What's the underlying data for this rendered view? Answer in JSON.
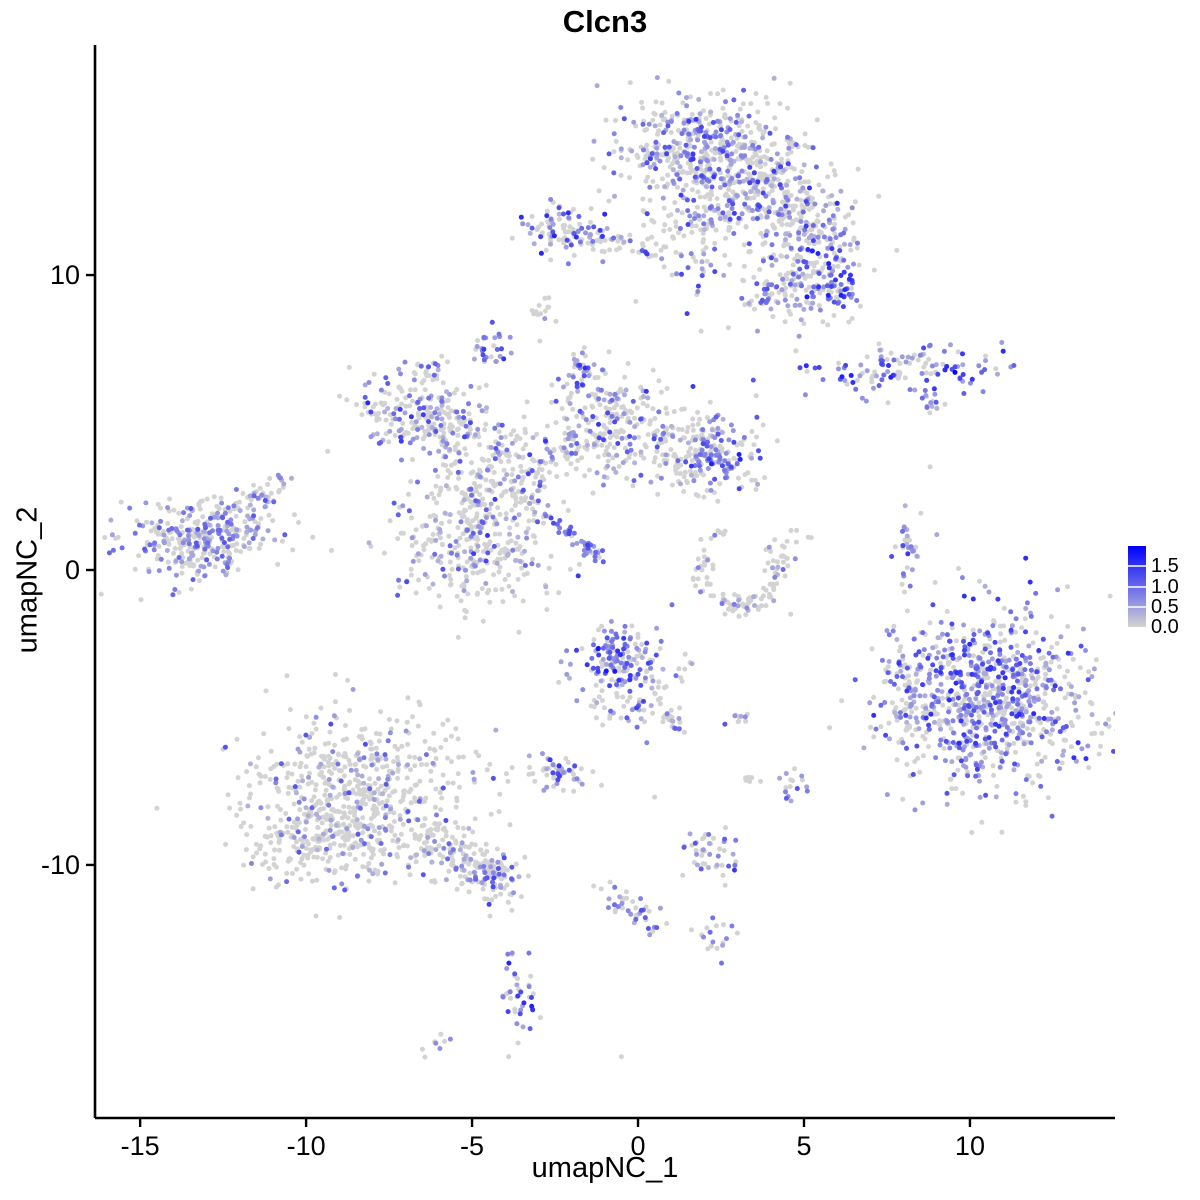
{
  "title": "Clcn3",
  "axes": {
    "xlabel": "umapNC_1",
    "ylabel": "umapNC_2",
    "x_ticks": [
      -15,
      -10,
      -5,
      0,
      5,
      10
    ],
    "y_ticks": [
      10,
      0,
      -10
    ],
    "xlim": [
      -16.36,
      14.37
    ],
    "ylim": [
      -18.58,
      17.8
    ],
    "axis_color": "#000000"
  },
  "legend": {
    "ticks": [
      "1.5",
      "1.0",
      "0.5",
      "0.0"
    ],
    "values": [
      1.5,
      1.0,
      0.5,
      0.0
    ],
    "max": 2.0,
    "color_low": "#D3D3D3",
    "color_high": "#0000FF"
  },
  "chart_data": {
    "type": "scatter",
    "title": "Clcn3",
    "xlabel": "umapNC_1",
    "ylabel": "umapNC_2",
    "grid": false,
    "legend_position": "right",
    "point_radius": 2.5,
    "seed": 20,
    "color_low": "#D3D3D3",
    "color_high": "#0000FF",
    "value_max": 2.0,
    "clusters": [
      {
        "name": "top-main",
        "shape": "gauss",
        "cx": 1.9,
        "cy": 14.2,
        "sx": 1.25,
        "sy": 1.0,
        "n": 480,
        "f": 0.38,
        "lo": 0.3,
        "hi": 1.5
      },
      {
        "name": "top-mid",
        "shape": "gauss",
        "cx": 3.6,
        "cy": 12.8,
        "sx": 1.0,
        "sy": 0.9,
        "n": 260,
        "f": 0.38,
        "lo": 0.3,
        "hi": 1.5
      },
      {
        "name": "top-arm",
        "shape": "gauss",
        "cx": 5.2,
        "cy": 11.4,
        "sx": 0.8,
        "sy": 0.75,
        "n": 150,
        "f": 0.42,
        "lo": 0.3,
        "hi": 1.6
      },
      {
        "name": "top-right-blob",
        "shape": "gauss",
        "cx": 5.65,
        "cy": 9.7,
        "sx": 0.6,
        "sy": 0.7,
        "n": 130,
        "f": 0.6,
        "lo": 0.4,
        "hi": 1.8
      },
      {
        "name": "top-lower-tail",
        "shape": "gauss",
        "cx": 4.0,
        "cy": 9.4,
        "sx": 0.5,
        "sy": 0.55,
        "n": 60,
        "f": 0.4,
        "lo": 0.3,
        "hi": 1.4
      },
      {
        "name": "top-neck",
        "shape": "gauss",
        "cx": 1.5,
        "cy": 11.2,
        "sx": 0.8,
        "sy": 0.95,
        "n": 80,
        "f": 0.33,
        "lo": 0.3,
        "hi": 1.4
      },
      {
        "name": "b-cluster",
        "shape": "gauss",
        "cx": -2.3,
        "cy": 11.5,
        "sx": 0.75,
        "sy": 0.5,
        "n": 100,
        "f": 0.38,
        "lo": 0.3,
        "hi": 1.7
      },
      {
        "name": "b-chain",
        "shape": "line",
        "x1": -1.2,
        "y1": 11.4,
        "x2": 0.3,
        "y2": 10.8,
        "j": 0.18,
        "n": 30,
        "f": 0.4,
        "lo": 0.3,
        "hi": 1.5
      },
      {
        "name": "c-fish",
        "shape": "gauss",
        "cx": 8.0,
        "cy": 6.8,
        "sx": 1.5,
        "sy": 0.45,
        "n": 120,
        "f": 0.7,
        "lo": 0.4,
        "hi": 1.7
      },
      {
        "name": "c-dark",
        "shape": "points",
        "pts": [
          [
            9.55,
            6.7,
            1.95
          ],
          [
            9.3,
            6.9,
            1.6
          ],
          [
            9.7,
            6.5,
            1.3
          ]
        ]
      },
      {
        "name": "c-tail",
        "shape": "line",
        "x1": 8.5,
        "y1": 6.1,
        "x2": 8.95,
        "y2": 5.3,
        "j": 0.12,
        "n": 12,
        "f": 0.5,
        "lo": 0.3,
        "hi": 1.2
      },
      {
        "name": "d-small",
        "shape": "gauss",
        "cx": -4.55,
        "cy": 7.4,
        "sx": 0.28,
        "sy": 0.42,
        "n": 28,
        "f": 0.85,
        "lo": 0.4,
        "hi": 1.6
      },
      {
        "name": "e-main",
        "shape": "gauss",
        "cx": -6.9,
        "cy": 5.5,
        "sx": 0.85,
        "sy": 0.7,
        "n": 150,
        "f": 0.42,
        "lo": 0.3,
        "hi": 1.6
      },
      {
        "name": "e-right",
        "shape": "gauss",
        "cx": -5.55,
        "cy": 4.9,
        "sx": 0.55,
        "sy": 0.5,
        "n": 70,
        "f": 0.35,
        "lo": 0.3,
        "hi": 1.4
      },
      {
        "name": "e-top-chain",
        "shape": "line",
        "x1": -6.4,
        "y1": 6.5,
        "x2": -6.1,
        "y2": 7.4,
        "j": 0.15,
        "n": 12,
        "f": 0.3,
        "lo": 0.3,
        "hi": 1.2
      },
      {
        "name": "f1-fan",
        "shape": "gauss",
        "cx": -0.9,
        "cy": 5.0,
        "sx": 0.95,
        "sy": 0.95,
        "n": 230,
        "f": 0.35,
        "lo": 0.3,
        "hi": 1.5
      },
      {
        "name": "f1-tip",
        "shape": "gauss",
        "cx": -1.7,
        "cy": 6.8,
        "sx": 0.3,
        "sy": 0.4,
        "n": 30,
        "f": 0.55,
        "lo": 0.4,
        "hi": 1.6
      },
      {
        "name": "f2-lobe",
        "shape": "gauss",
        "cx": 1.8,
        "cy": 4.0,
        "sx": 1.0,
        "sy": 0.68,
        "n": 210,
        "f": 0.32,
        "lo": 0.3,
        "hi": 1.5
      },
      {
        "name": "f2-dense",
        "shape": "gauss",
        "cx": 2.55,
        "cy": 3.75,
        "sx": 0.35,
        "sy": 0.35,
        "n": 40,
        "f": 0.85,
        "lo": 0.5,
        "hi": 1.7
      },
      {
        "name": "f3-branch",
        "shape": "gauss",
        "cx": -4.4,
        "cy": 3.6,
        "sx": 0.85,
        "sy": 0.85,
        "n": 160,
        "f": 0.3,
        "lo": 0.3,
        "hi": 1.4
      },
      {
        "name": "f3-arm",
        "shape": "line",
        "x1": -3.5,
        "y1": 3.1,
        "x2": -1.9,
        "y2": 4.3,
        "j": 0.3,
        "n": 45,
        "f": 0.35,
        "lo": 0.3,
        "hi": 1.4
      },
      {
        "name": "f4-round",
        "shape": "gauss",
        "cx": -5.0,
        "cy": 0.8,
        "sx": 1.2,
        "sy": 1.1,
        "n": 300,
        "f": 0.28,
        "lo": 0.3,
        "hi": 1.5
      },
      {
        "name": "f4-neck",
        "shape": "line",
        "x1": -4.9,
        "y1": 2.4,
        "x2": -5.0,
        "y2": 1.5,
        "j": 0.25,
        "n": 30,
        "f": 0.3,
        "lo": 0.3,
        "hi": 1.2
      },
      {
        "name": "f5-streak",
        "shape": "line",
        "x1": -2.7,
        "y1": 1.8,
        "x2": -1.15,
        "y2": 0.35,
        "j": 0.12,
        "n": 40,
        "f": 0.85,
        "lo": 0.5,
        "hi": 1.4
      },
      {
        "name": "f6-arm",
        "shape": "line",
        "x1": -3.9,
        "y1": 2.6,
        "x2": -2.8,
        "y2": 1.9,
        "j": 0.2,
        "n": 25,
        "f": 0.4,
        "lo": 0.3,
        "hi": 1.3
      },
      {
        "name": "g-crescent",
        "shape": "arc",
        "cx": 3.1,
        "cy": -0.05,
        "r": 1.15,
        "a1": 150,
        "a2": 385,
        "j": 0.15,
        "n": 90,
        "f": 0.12,
        "lo": 0.3,
        "hi": 1.0
      },
      {
        "name": "g-top",
        "shape": "gauss",
        "cx": 4.3,
        "cy": 0.75,
        "sx": 0.35,
        "sy": 0.3,
        "n": 18,
        "f": 0.15,
        "lo": 0.3,
        "hi": 1.0
      },
      {
        "name": "g-dots",
        "shape": "gauss",
        "cx": 2.3,
        "cy": 1.3,
        "sx": 0.25,
        "sy": 0.2,
        "n": 8,
        "f": 0.2,
        "lo": 0.3,
        "hi": 1.0
      },
      {
        "name": "h-main",
        "shape": "gauss",
        "cx": -13.6,
        "cy": 0.9,
        "sx": 0.95,
        "sy": 0.7,
        "n": 210,
        "f": 0.5,
        "lo": 0.35,
        "hi": 1.2
      },
      {
        "name": "h-right",
        "shape": "gauss",
        "cx": -12.4,
        "cy": 1.4,
        "sx": 0.85,
        "sy": 0.6,
        "n": 130,
        "f": 0.48,
        "lo": 0.35,
        "hi": 1.2
      },
      {
        "name": "h-tail",
        "shape": "line",
        "x1": -11.8,
        "y1": 2.2,
        "x2": -10.7,
        "y2": 3.0,
        "j": 0.22,
        "n": 35,
        "f": 0.45,
        "lo": 0.3,
        "hi": 1.3
      },
      {
        "name": "i-strip",
        "shape": "gauss",
        "cx": 8.1,
        "cy": 0.55,
        "sx": 0.18,
        "sy": 0.6,
        "n": 30,
        "f": 0.5,
        "lo": 0.3,
        "hi": 1.5
      },
      {
        "name": "j-main",
        "shape": "gauss",
        "cx": 10.6,
        "cy": -4.4,
        "sx": 1.55,
        "sy": 1.55,
        "n": 850,
        "f": 0.55,
        "lo": 0.35,
        "hi": 1.6
      },
      {
        "name": "j-left",
        "shape": "gauss",
        "cx": 8.2,
        "cy": -4.1,
        "sx": 0.35,
        "sy": 1.0,
        "n": 70,
        "f": 0.45,
        "lo": 0.3,
        "hi": 1.4
      },
      {
        "name": "k-main",
        "shape": "gauss",
        "cx": -0.4,
        "cy": -3.55,
        "sx": 0.75,
        "sy": 0.85,
        "n": 170,
        "f": 0.45,
        "lo": 0.3,
        "hi": 1.5
      },
      {
        "name": "k-dark",
        "shape": "gauss",
        "cx": -0.78,
        "cy": -2.75,
        "sx": 0.32,
        "sy": 0.32,
        "n": 45,
        "f": 0.9,
        "lo": 0.6,
        "hi": 1.8
      },
      {
        "name": "k-tail",
        "shape": "line",
        "x1": 0.5,
        "y1": -4.7,
        "x2": 1.3,
        "y2": -5.3,
        "j": 0.18,
        "n": 20,
        "f": 0.4,
        "lo": 0.3,
        "hi": 1.3
      },
      {
        "name": "k-pair",
        "shape": "gauss",
        "cx": 2.95,
        "cy": -5.1,
        "sx": 0.18,
        "sy": 0.15,
        "n": 10,
        "f": 0.65,
        "lo": 0.4,
        "hi": 1.4
      },
      {
        "name": "l-small",
        "shape": "gauss",
        "cx": -2.4,
        "cy": -6.8,
        "sx": 0.45,
        "sy": 0.35,
        "n": 50,
        "f": 0.5,
        "lo": 0.35,
        "hi": 1.5
      },
      {
        "name": "m-purple",
        "shape": "gauss",
        "cx": 4.75,
        "cy": -7.3,
        "sx": 0.22,
        "sy": 0.32,
        "n": 16,
        "f": 0.6,
        "lo": 0.4,
        "hi": 1.5
      },
      {
        "name": "m-grey",
        "shape": "gauss",
        "cx": 3.3,
        "cy": -7.1,
        "sx": 0.18,
        "sy": 0.15,
        "n": 8,
        "f": 0.12,
        "lo": 0.3,
        "hi": 0.8
      },
      {
        "name": "n-main",
        "shape": "gauss",
        "cx": -8.4,
        "cy": -7.4,
        "sx": 1.7,
        "sy": 1.35,
        "n": 550,
        "f": 0.17,
        "lo": 0.3,
        "hi": 1.3
      },
      {
        "name": "n-lower",
        "shape": "gauss",
        "cx": -9.4,
        "cy": -9.2,
        "sx": 1.3,
        "sy": 0.8,
        "n": 220,
        "f": 0.15,
        "lo": 0.3,
        "hi": 1.2
      },
      {
        "name": "n-tail",
        "shape": "line",
        "x1": -6.5,
        "y1": -9.0,
        "x2": -4.1,
        "y2": -10.6,
        "j": 0.45,
        "n": 140,
        "f": 0.25,
        "lo": 0.3,
        "hi": 1.3
      },
      {
        "name": "n-tip",
        "shape": "gauss",
        "cx": -4.3,
        "cy": -10.3,
        "sx": 0.4,
        "sy": 0.35,
        "n": 40,
        "f": 0.5,
        "lo": 0.35,
        "hi": 1.4
      },
      {
        "name": "o-cluster",
        "shape": "gauss",
        "cx": 2.2,
        "cy": -9.6,
        "sx": 0.4,
        "sy": 0.45,
        "n": 45,
        "f": 0.5,
        "lo": 0.35,
        "hi": 1.5
      },
      {
        "name": "p-chain",
        "shape": "line",
        "x1": -0.85,
        "y1": -10.8,
        "x2": 0.5,
        "y2": -12.1,
        "j": 0.25,
        "n": 40,
        "f": 0.45,
        "lo": 0.3,
        "hi": 1.4
      },
      {
        "name": "q-small",
        "shape": "gauss",
        "cx": 2.25,
        "cy": -12.5,
        "sx": 0.3,
        "sy": 0.4,
        "n": 18,
        "f": 0.5,
        "lo": 0.3,
        "hi": 1.4
      },
      {
        "name": "r-small",
        "shape": "gauss",
        "cx": -3.65,
        "cy": -14.4,
        "sx": 0.28,
        "sy": 0.75,
        "n": 42,
        "f": 0.6,
        "lo": 0.4,
        "hi": 1.7
      },
      {
        "name": "s-tiny",
        "shape": "gauss",
        "cx": -6.1,
        "cy": -16.0,
        "sx": 0.25,
        "sy": 0.18,
        "n": 9,
        "f": 0.3,
        "lo": 0.3,
        "hi": 1.0
      },
      {
        "name": "grey-smudge",
        "shape": "gauss",
        "cx": -2.9,
        "cy": 8.6,
        "sx": 0.28,
        "sy": 0.3,
        "n": 14,
        "f": 0.03,
        "lo": 0.3,
        "hi": 0.8
      },
      {
        "name": "singles",
        "shape": "points",
        "pts": [
          [
            6.0,
            9.2,
            0
          ],
          [
            8.8,
            3.5,
            0
          ],
          [
            2.2,
            2.7,
            0.6
          ],
          [
            1.9,
            8.1,
            0
          ],
          [
            3.6,
            8.1,
            0.5
          ],
          [
            -0.3,
            7.0,
            0
          ],
          [
            4.6,
            -1.5,
            0
          ],
          [
            -1.1,
            -7.3,
            0
          ],
          [
            0.5,
            -7.7,
            0
          ],
          [
            9.0,
            1.2,
            0.4
          ],
          [
            6.3,
            6.3,
            0
          ],
          [
            -0.5,
            -16.5,
            0
          ]
        ]
      }
    ]
  }
}
